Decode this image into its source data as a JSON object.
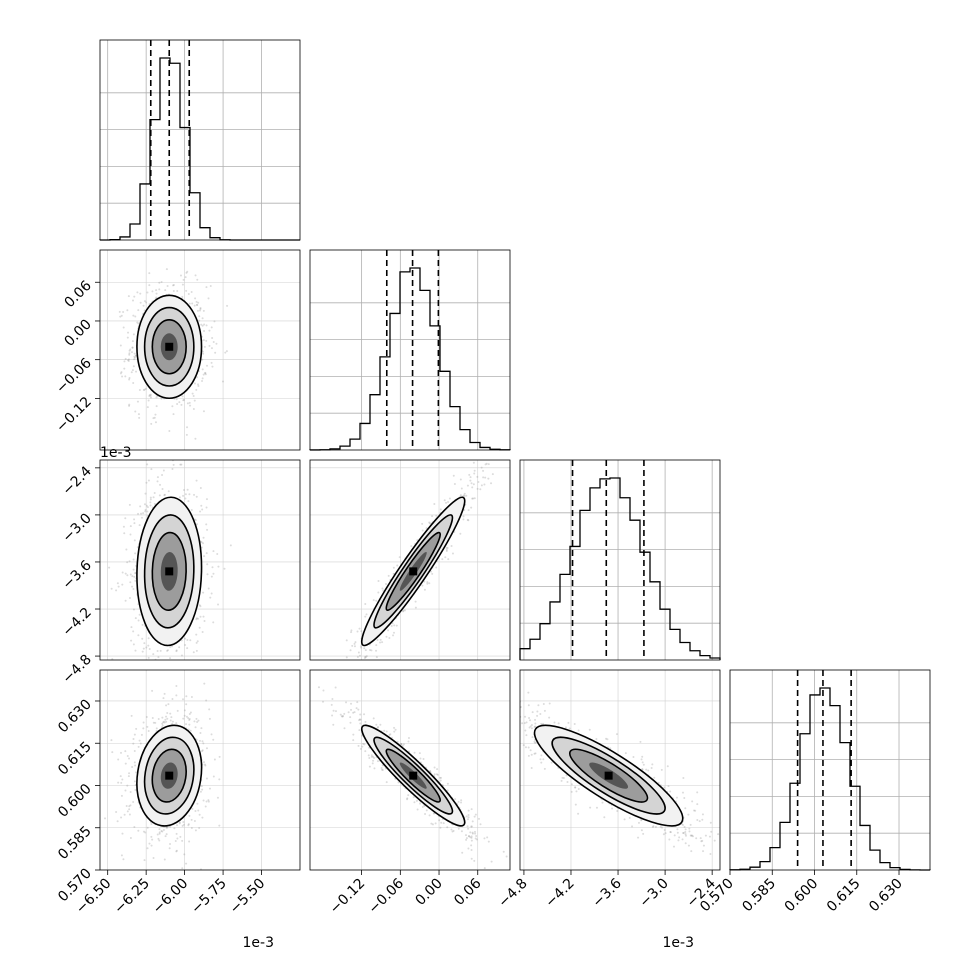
{
  "chart_data": {
    "type": "corner",
    "params": [
      {
        "offset_text": "1e-3",
        "range": [
          -6.55,
          -5.25
        ],
        "ticks": [
          -6.5,
          -6.25,
          -6.0,
          -5.75,
          -5.5
        ],
        "tick_labels": [
          "−6.50",
          "−6.25",
          "−6.00",
          "−5.75",
          "−5.50"
        ],
        "quantiles": [
          -6.22,
          -6.1,
          -5.97
        ],
        "mean": -6.1,
        "sd": 0.1
      },
      {
        "offset_text": "",
        "range": [
          -0.2,
          0.11
        ],
        "ticks": [
          -0.12,
          -0.06,
          0.0,
          0.06
        ],
        "tick_labels": [
          "−0.12",
          "−0.06",
          "0.00",
          "0.06"
        ],
        "quantiles": [
          -0.081,
          -0.041,
          -0.001
        ],
        "mean": -0.04,
        "sd": 0.038
      },
      {
        "offset_text": "1e-3",
        "range": [
          -4.85,
          -2.3
        ],
        "ticks": [
          -4.8,
          -4.2,
          -3.6,
          -3.0,
          -2.4
        ],
        "tick_labels": [
          "−4.8",
          "−4.2",
          "−3.6",
          "−3.0",
          "−2.4"
        ],
        "quantiles": [
          -4.18,
          -3.75,
          -3.27
        ],
        "mean": -3.72,
        "sd": 0.45
      },
      {
        "offset_text": "",
        "range": [
          0.57,
          0.641
        ],
        "ticks": [
          0.57,
          0.585,
          0.6,
          0.615,
          0.63
        ],
        "tick_labels": [
          "0.570",
          "0.585",
          "0.600",
          "0.615",
          "0.630"
        ],
        "quantiles": [
          0.594,
          0.603,
          0.613
        ],
        "mean": 0.6035,
        "sd": 0.0085
      }
    ],
    "correlations": {
      "1-0": 0.0,
      "2-0": 0.05,
      "2-1": 0.95,
      "3-0": 0.15,
      "3-1": -0.93,
      "3-2": -0.85
    },
    "grid": true,
    "histogram_bins": 20
  }
}
